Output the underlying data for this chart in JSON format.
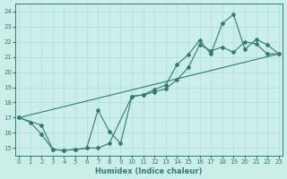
{
  "xlabel": "Humidex (Indice chaleur)",
  "ylabel": "",
  "bg_color": "#cceee8",
  "grid_color": "#aadddd",
  "line_color": "#2e7d6e",
  "xmin": -0.3,
  "xmax": 23.3,
  "ymin": 14.5,
  "ymax": 24.5,
  "yticks": [
    15,
    16,
    17,
    18,
    19,
    20,
    21,
    22,
    23,
    24
  ],
  "xticks": [
    0,
    1,
    2,
    3,
    4,
    5,
    6,
    7,
    8,
    9,
    10,
    11,
    12,
    13,
    14,
    15,
    16,
    17,
    18,
    19,
    20,
    21,
    22,
    23
  ],
  "series1_x": [
    0,
    1,
    2,
    3,
    4,
    5,
    6,
    7,
    8,
    9,
    10,
    11,
    12,
    13,
    14,
    15,
    16,
    17,
    18,
    19,
    20,
    21,
    22,
    23
  ],
  "series1_y": [
    17.0,
    16.7,
    15.9,
    14.9,
    14.85,
    14.9,
    15.0,
    17.5,
    16.1,
    15.3,
    18.4,
    18.5,
    18.85,
    19.15,
    20.5,
    21.15,
    22.1,
    21.2,
    23.2,
    23.8,
    21.5,
    22.15,
    21.8,
    21.2
  ],
  "series2_x": [
    0,
    2,
    3,
    4,
    5,
    6,
    7,
    8,
    10,
    11,
    12,
    13,
    14,
    15,
    16,
    17,
    18,
    19,
    20,
    21,
    22,
    23
  ],
  "series2_y": [
    17.0,
    16.5,
    14.9,
    14.85,
    14.9,
    15.0,
    15.0,
    15.3,
    18.4,
    18.5,
    18.7,
    18.9,
    19.5,
    20.3,
    21.8,
    21.4,
    21.65,
    21.3,
    22.0,
    21.85,
    21.2,
    21.2
  ],
  "ref_line_x": [
    0,
    23
  ],
  "ref_line_y": [
    17.0,
    21.2
  ]
}
